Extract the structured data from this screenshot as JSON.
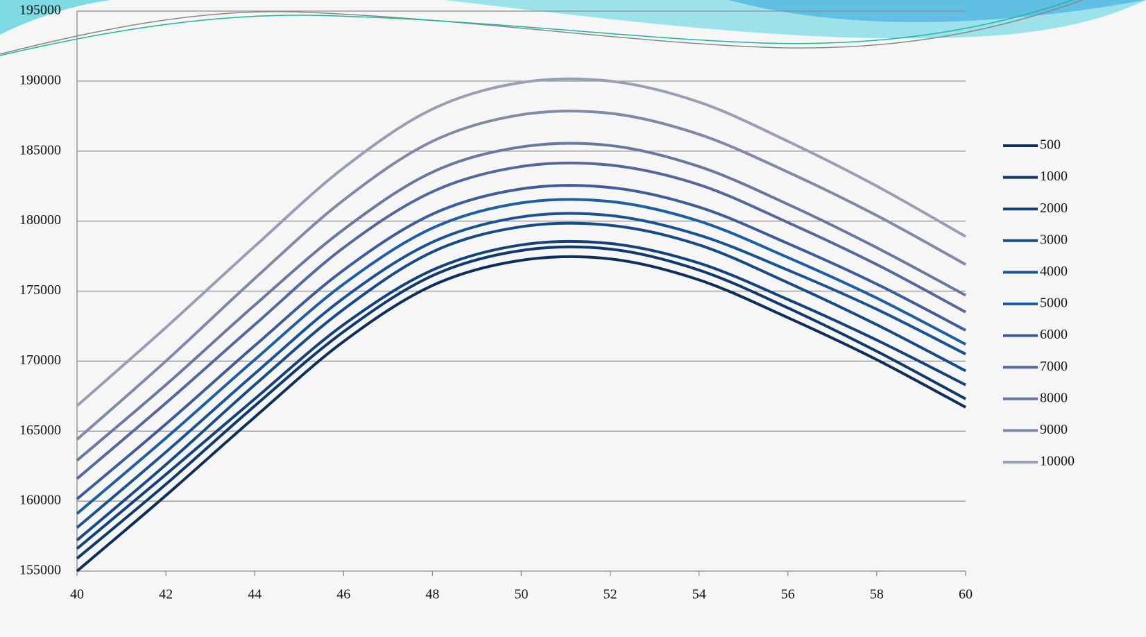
{
  "chart_data": {
    "type": "line",
    "x": [
      40,
      42,
      44,
      46,
      48,
      50,
      52,
      54,
      56,
      58,
      60
    ],
    "xlim": [
      40,
      60
    ],
    "xticks": [
      40,
      42,
      44,
      46,
      48,
      50,
      52,
      54,
      56,
      58,
      60
    ],
    "ylim": [
      155000,
      195000
    ],
    "yticks": [
      155000,
      160000,
      165000,
      170000,
      175000,
      180000,
      185000,
      190000,
      195000
    ],
    "grid": true,
    "legend": "right",
    "series": [
      {
        "name": "500",
        "color": "#0f2f5a",
        "values": [
          155000,
          160400,
          166000,
          171400,
          175400,
          177200,
          177300,
          175800,
          173100,
          170100,
          166700
        ]
      },
      {
        "name": "1000",
        "color": "#12396b",
        "values": [
          155900,
          161200,
          166800,
          172100,
          176100,
          177900,
          178000,
          176500,
          173800,
          170700,
          167300
        ]
      },
      {
        "name": "2000",
        "color": "#15427a",
        "values": [
          156600,
          161900,
          167300,
          172600,
          176500,
          178300,
          178400,
          177000,
          174400,
          171500,
          168300
        ]
      },
      {
        "name": "3000",
        "color": "#174b88",
        "values": [
          157200,
          162600,
          168300,
          173700,
          177800,
          179600,
          179700,
          178300,
          175600,
          172600,
          169300
        ]
      },
      {
        "name": "4000",
        "color": "#1a5394",
        "values": [
          158100,
          163500,
          169100,
          174500,
          178500,
          180300,
          180400,
          179000,
          176500,
          173700,
          170500
        ]
      },
      {
        "name": "5000",
        "color": "#1f5ea2",
        "values": [
          159100,
          164500,
          170100,
          175500,
          179500,
          181300,
          181400,
          180000,
          177400,
          174500,
          171200
        ]
      },
      {
        "name": "6000",
        "color": "#3e5c9a",
        "values": [
          160150,
          165500,
          171100,
          176500,
          180500,
          182300,
          182400,
          181000,
          178400,
          175500,
          172200
        ]
      },
      {
        "name": "7000",
        "color": "#54689e",
        "values": [
          161600,
          167000,
          172600,
          178100,
          182100,
          183900,
          184000,
          182600,
          179900,
          176900,
          173500
        ]
      },
      {
        "name": "8000",
        "color": "#6a78a0",
        "values": [
          162900,
          168300,
          174000,
          179400,
          183500,
          185300,
          185400,
          183900,
          181200,
          178100,
          174700
        ]
      },
      {
        "name": "9000",
        "color": "#8089a6",
        "values": [
          164400,
          170000,
          175900,
          181500,
          185700,
          187600,
          187700,
          186200,
          183500,
          180400,
          176900
        ]
      },
      {
        "name": "10000",
        "color": "#989fb4",
        "values": [
          166800,
          172400,
          178200,
          183800,
          188000,
          189900,
          190000,
          188500,
          185700,
          182500,
          178900
        ]
      }
    ]
  }
}
